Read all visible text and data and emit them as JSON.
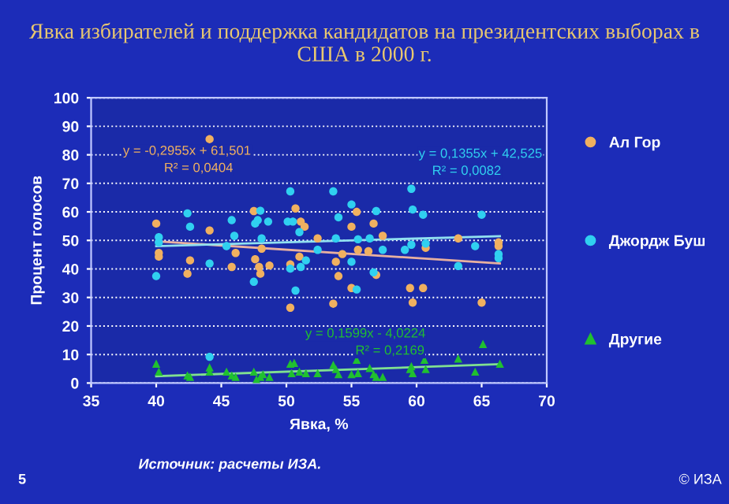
{
  "chart_data": {
    "type": "scatter",
    "title": "Явка избирателей и поддержка кандидатов на президентских выборах в США в 2000 г.",
    "xlabel": "Явка, %",
    "ylabel": "Процент голосов",
    "xlim": [
      35,
      70
    ],
    "xticks": [
      35,
      40,
      45,
      50,
      55,
      60,
      65,
      70
    ],
    "ylim": [
      0,
      100
    ],
    "yticks": [
      0,
      10,
      20,
      30,
      40,
      50,
      60,
      70,
      80,
      90,
      100
    ],
    "grid": "y",
    "legend": "right",
    "series": [
      {
        "name": "Ал Гор",
        "color": "#f0b060",
        "marker": "circle",
        "x": [
          40.0,
          40.2,
          40.2,
          44.1,
          44.1,
          42.4,
          42.6,
          45.8,
          46.1,
          47.5,
          47.6,
          47.9,
          48.0,
          48.1,
          48.7,
          50.3,
          50.3,
          50.7,
          51.0,
          51.1,
          51.4,
          52.4,
          53.6,
          53.8,
          54.0,
          54.3,
          55.0,
          55.0,
          55.4,
          55.5,
          56.3,
          56.7,
          56.9,
          57.4,
          59.5,
          59.7,
          60.5,
          60.7,
          63.2,
          65.0,
          66.3,
          66.3
        ],
        "values": [
          55.9,
          45.6,
          44.3,
          85.5,
          53.5,
          38.3,
          43.0,
          40.7,
          45.6,
          60.3,
          43.4,
          40.7,
          38.3,
          47.1,
          41.2,
          26.4,
          41.6,
          61.2,
          44.3,
          56.6,
          54.8,
          50.7,
          27.8,
          42.5,
          37.5,
          45.2,
          54.8,
          33.3,
          60.0,
          46.7,
          46.2,
          55.9,
          37.9,
          51.6,
          33.3,
          28.2,
          33.3,
          47.4,
          50.7,
          28.2,
          49.3,
          48.0
        ]
      },
      {
        "name": "Джордж Буш",
        "color": "#30d0f0",
        "marker": "circle",
        "x": [
          40.0,
          40.2,
          40.2,
          42.4,
          42.6,
          44.1,
          44.1,
          45.4,
          45.8,
          46.0,
          47.5,
          47.6,
          47.8,
          48.0,
          48.1,
          48.6,
          50.3,
          50.1,
          50.5,
          50.3,
          50.7,
          51.0,
          51.1,
          51.5,
          52.4,
          53.6,
          53.8,
          54.0,
          55.0,
          55.0,
          55.4,
          55.5,
          56.4,
          56.7,
          56.9,
          57.4,
          59.6,
          59.7,
          60.5,
          59.6,
          60.7,
          59.1,
          63.2,
          64.5,
          65.0,
          66.3,
          66.3
        ],
        "values": [
          37.5,
          51.1,
          49.3,
          59.5,
          54.8,
          41.9,
          9.2,
          48.0,
          57.1,
          51.6,
          35.5,
          55.9,
          57.1,
          60.4,
          50.7,
          56.6,
          67.2,
          56.6,
          56.6,
          40.1,
          32.4,
          52.9,
          40.7,
          43.0,
          46.7,
          67.2,
          50.7,
          58.1,
          62.6,
          42.5,
          32.8,
          50.4,
          50.7,
          38.8,
          60.3,
          46.7,
          68.1,
          60.8,
          59.0,
          48.5,
          48.9,
          46.7,
          41.0,
          48.0,
          59.0,
          45.2,
          43.8
        ]
      },
      {
        "name": "Другие",
        "color": "#20c030",
        "marker": "triangle",
        "x": [
          40.0,
          40.2,
          42.4,
          42.6,
          44.1,
          44.1,
          45.4,
          45.8,
          46.1,
          47.5,
          47.7,
          48.0,
          48.2,
          48.7,
          50.3,
          50.4,
          50.6,
          51.0,
          51.5,
          52.4,
          53.6,
          53.8,
          54.0,
          55.0,
          55.4,
          55.5,
          56.4,
          56.7,
          56.9,
          57.4,
          59.6,
          59.5,
          59.7,
          60.6,
          60.7,
          63.2,
          64.5,
          65.1,
          66.4
        ],
        "values": [
          6.8,
          4.0,
          2.7,
          2.2,
          5.5,
          4.0,
          4.0,
          2.7,
          2.2,
          4.0,
          1.3,
          2.2,
          3.1,
          2.2,
          6.8,
          3.5,
          7.1,
          4.0,
          3.5,
          3.5,
          6.4,
          4.9,
          3.1,
          3.1,
          8.2,
          3.5,
          5.3,
          3.1,
          2.2,
          2.2,
          5.9,
          4.9,
          3.5,
          8.2,
          4.9,
          8.6,
          4.0,
          13.7,
          6.8
        ]
      },
      {
        "type": "line",
        "color": "#e8b0a0",
        "x": [
          40,
          66.4
        ],
        "values": [
          49.7,
          41.9
        ]
      },
      {
        "type": "line",
        "color": "#90e0f0",
        "x": [
          40,
          66.4
        ],
        "values": [
          48.0,
          51.5
        ]
      },
      {
        "type": "line",
        "color": "#80e090",
        "x": [
          40,
          66.4
        ],
        "values": [
          2.4,
          6.6
        ]
      }
    ],
    "annotations": [
      "y = -0,2955x + 61,501",
      "R² = 0,0404",
      "y = 0,1355x + 42,525",
      "R² = 0,0082",
      "y = 0,1599x - 4,0224",
      "R² = 0,2169",
      "Источник: расчеты ИЗА.",
      "5",
      "© ИЗА"
    ]
  }
}
